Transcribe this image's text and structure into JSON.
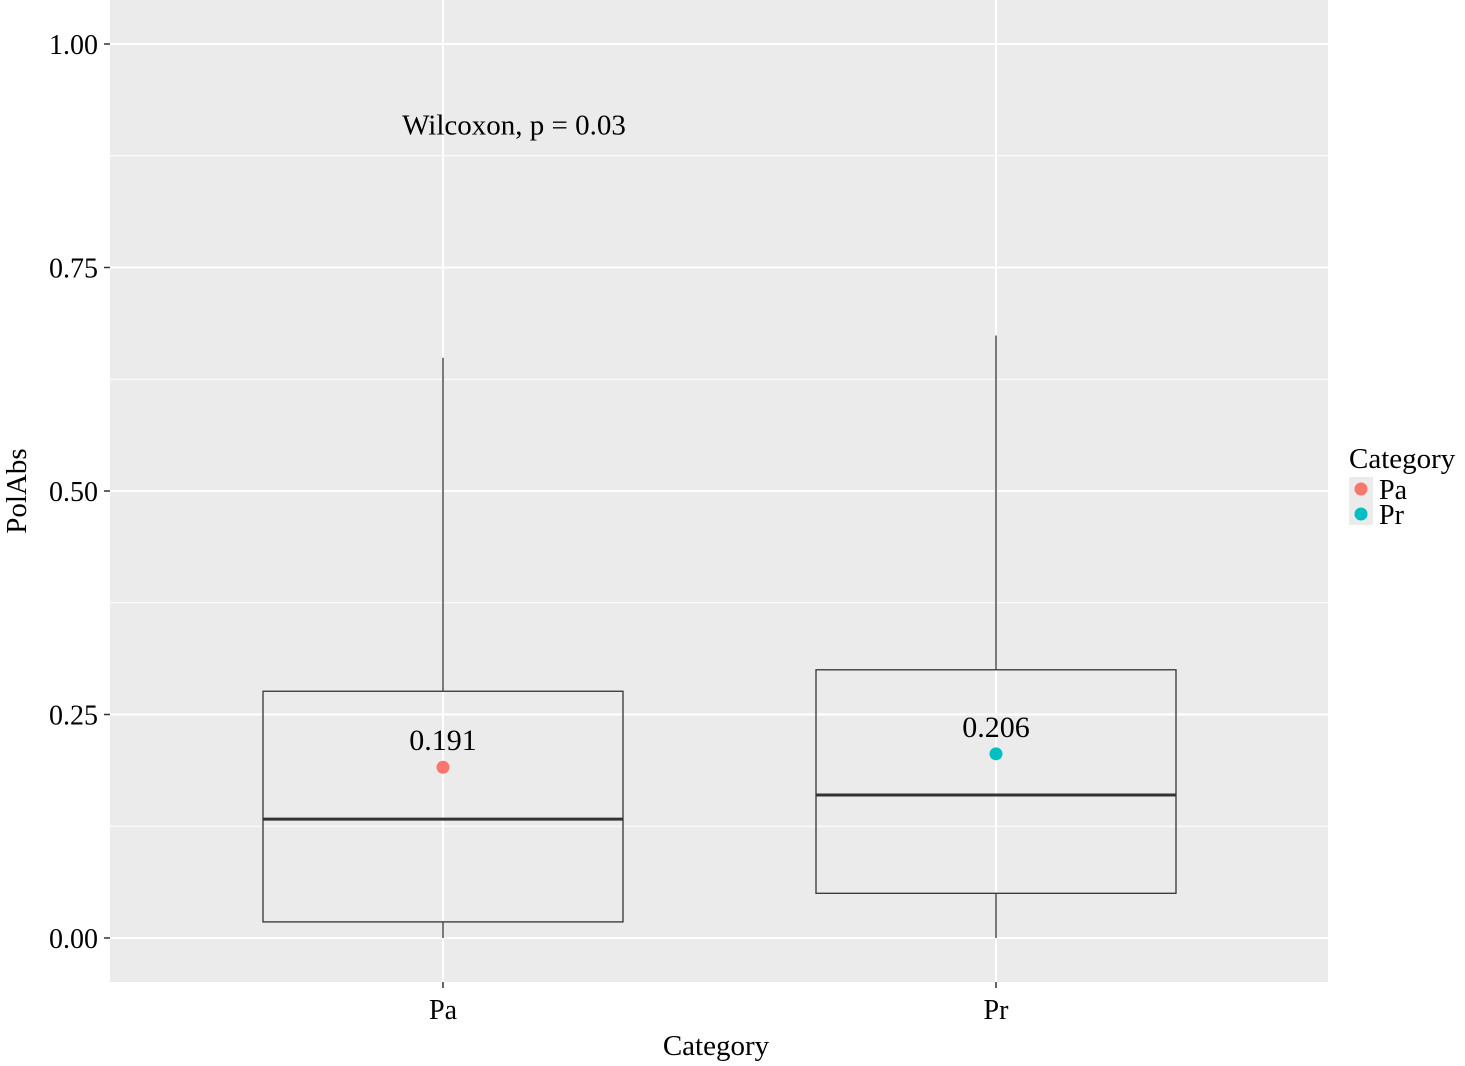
{
  "chart_data": {
    "type": "box",
    "xlabel": "Category",
    "ylabel": "PolAbs",
    "ylim": [
      -0.05,
      1.05
    ],
    "yticks": [
      "0.00",
      "0.25",
      "0.50",
      "0.75",
      "1.00"
    ],
    "ytick_values": [
      0,
      0.25,
      0.5,
      0.75,
      1.0
    ],
    "categories": [
      "Pa",
      "Pr"
    ],
    "boxes": [
      {
        "category": "Pa",
        "min": 0.0,
        "q1": 0.018,
        "median": 0.133,
        "q3": 0.276,
        "max": 0.649,
        "mean": 0.191,
        "mean_label": "0.191",
        "color": "#F8766D"
      },
      {
        "category": "Pr",
        "min": 0.0,
        "q1": 0.05,
        "median": 0.16,
        "q3": 0.3,
        "max": 0.674,
        "mean": 0.206,
        "mean_label": "0.206",
        "color": "#00BFC4"
      }
    ],
    "annotation": {
      "text": "Wilcoxon, p = 0.03",
      "x_category": "Pa",
      "y": 0.91
    },
    "legend": {
      "title": "Category",
      "position": "right",
      "items": [
        {
          "label": "Pa",
          "color": "#F8766D"
        },
        {
          "label": "Pr",
          "color": "#00BFC4"
        }
      ]
    },
    "grid": true,
    "panel_background": "#EBEBEB",
    "grid_color": "#FFFFFF"
  }
}
